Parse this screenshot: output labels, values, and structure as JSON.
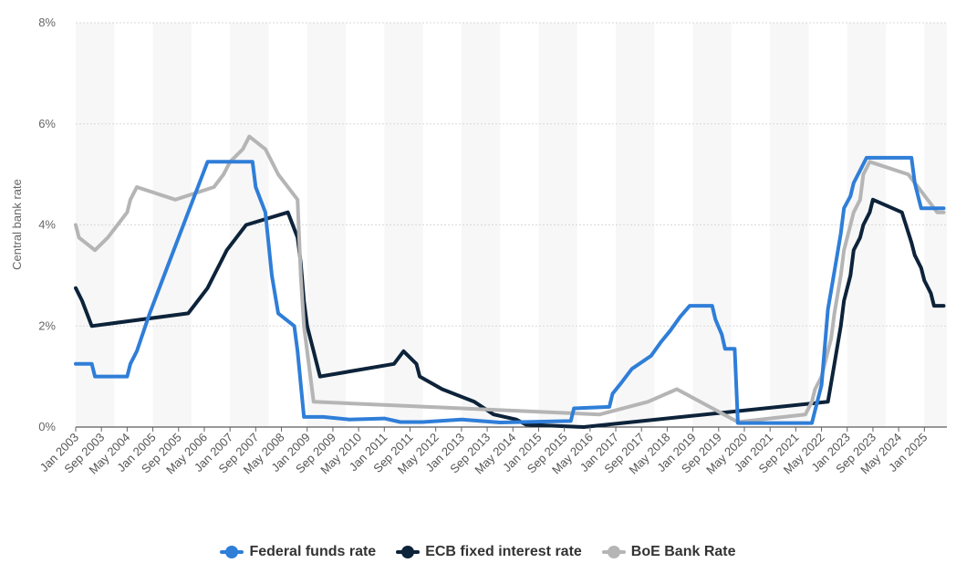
{
  "chart_data": {
    "type": "line",
    "title": "",
    "ylabel": "Central bank rate",
    "xlabel": "",
    "ylim": [
      0,
      8
    ],
    "xlim": [
      "2003-01",
      "2025-08"
    ],
    "yticks": [
      "0%",
      "2%",
      "4%",
      "6%",
      "8%"
    ],
    "ytick_values": [
      0,
      2,
      4,
      6,
      8
    ],
    "xticks": [
      "Jan 2003",
      "Sep 2003",
      "May 2004",
      "Jan 2005",
      "Sep 2005",
      "May 2006",
      "Jan 2007",
      "Sep 2007",
      "May 2008",
      "Jan 2009",
      "Sep 2009",
      "May 2010",
      "Jan 2011",
      "Sep 2011",
      "May 2012",
      "Jan 2013",
      "Sep 2013",
      "May 2014",
      "Jan 2015",
      "Sep 2015",
      "May 2016",
      "Jan 2017",
      "Sep 2017",
      "May 2018",
      "Jan 2019",
      "Sep 2019",
      "May 2020",
      "Jan 2021",
      "Sep 2021",
      "May 2022",
      "Jan 2023",
      "Sep 2023",
      "May 2024",
      "Jan 2025"
    ],
    "xtick_dates": [
      "2003-01",
      "2003-09",
      "2004-05",
      "2005-01",
      "2005-09",
      "2006-05",
      "2007-01",
      "2007-09",
      "2008-05",
      "2009-01",
      "2009-09",
      "2010-05",
      "2011-01",
      "2011-09",
      "2012-05",
      "2013-01",
      "2013-09",
      "2014-05",
      "2015-01",
      "2015-09",
      "2016-05",
      "2017-01",
      "2017-09",
      "2018-05",
      "2019-01",
      "2019-09",
      "2020-05",
      "2021-01",
      "2021-09",
      "2022-05",
      "2023-01",
      "2023-09",
      "2024-05",
      "2025-01"
    ],
    "grid": true,
    "legend_position": "bottom",
    "series": [
      {
        "name": "Federal funds rate",
        "color": "#2f7ed8",
        "points": [
          [
            "2003-01",
            1.25
          ],
          [
            "2003-06",
            1.25
          ],
          [
            "2003-07",
            1.0
          ],
          [
            "2004-05",
            1.0
          ],
          [
            "2004-06",
            1.25
          ],
          [
            "2004-08",
            1.5
          ],
          [
            "2004-12",
            2.25
          ],
          [
            "2005-06",
            3.25
          ],
          [
            "2005-12",
            4.25
          ],
          [
            "2006-06",
            5.25
          ],
          [
            "2007-08",
            5.25
          ],
          [
            "2007-09",
            4.75
          ],
          [
            "2007-12",
            4.25
          ],
          [
            "2008-02",
            3.0
          ],
          [
            "2008-04",
            2.25
          ],
          [
            "2008-09",
            2.0
          ],
          [
            "2008-10",
            1.5
          ],
          [
            "2008-12",
            0.2
          ],
          [
            "2009-06",
            0.2
          ],
          [
            "2010-02",
            0.15
          ],
          [
            "2011-01",
            0.17
          ],
          [
            "2011-06",
            0.1
          ],
          [
            "2012-01",
            0.1
          ],
          [
            "2013-01",
            0.15
          ],
          [
            "2014-01",
            0.09
          ],
          [
            "2015-11",
            0.12
          ],
          [
            "2015-12",
            0.37
          ],
          [
            "2016-11",
            0.4
          ],
          [
            "2016-12",
            0.66
          ],
          [
            "2017-03",
            0.9
          ],
          [
            "2017-06",
            1.15
          ],
          [
            "2017-12",
            1.41
          ],
          [
            "2018-03",
            1.68
          ],
          [
            "2018-06",
            1.91
          ],
          [
            "2018-09",
            2.18
          ],
          [
            "2018-12",
            2.4
          ],
          [
            "2019-07",
            2.4
          ],
          [
            "2019-08",
            2.13
          ],
          [
            "2019-10",
            1.83
          ],
          [
            "2019-11",
            1.55
          ],
          [
            "2020-02",
            1.55
          ],
          [
            "2020-03",
            0.08
          ],
          [
            "2022-02",
            0.08
          ],
          [
            "2022-03",
            0.33
          ],
          [
            "2022-05",
            0.83
          ],
          [
            "2022-06",
            1.58
          ],
          [
            "2022-07",
            2.33
          ],
          [
            "2022-09",
            3.08
          ],
          [
            "2022-11",
            3.83
          ],
          [
            "2022-12",
            4.33
          ],
          [
            "2023-02",
            4.57
          ],
          [
            "2023-03",
            4.83
          ],
          [
            "2023-05",
            5.08
          ],
          [
            "2023-07",
            5.33
          ],
          [
            "2024-09",
            5.33
          ],
          [
            "2024-10",
            4.83
          ],
          [
            "2024-11",
            4.58
          ],
          [
            "2024-12",
            4.33
          ],
          [
            "2025-07",
            4.33
          ]
        ]
      },
      {
        "name": "ECB fixed interest rate",
        "color": "#0d233a",
        "points": [
          [
            "2003-01",
            2.75
          ],
          [
            "2003-03",
            2.5
          ],
          [
            "2003-06",
            2.0
          ],
          [
            "2005-12",
            2.25
          ],
          [
            "2006-03",
            2.5
          ],
          [
            "2006-06",
            2.75
          ],
          [
            "2006-08",
            3.0
          ],
          [
            "2006-10",
            3.25
          ],
          [
            "2006-12",
            3.5
          ],
          [
            "2007-03",
            3.75
          ],
          [
            "2007-06",
            4.0
          ],
          [
            "2008-07",
            4.25
          ],
          [
            "2008-10",
            3.75
          ],
          [
            "2008-11",
            3.25
          ],
          [
            "2008-12",
            2.5
          ],
          [
            "2009-01",
            2.0
          ],
          [
            "2009-03",
            1.5
          ],
          [
            "2009-04",
            1.25
          ],
          [
            "2009-05",
            1.0
          ],
          [
            "2011-04",
            1.25
          ],
          [
            "2011-07",
            1.5
          ],
          [
            "2011-11",
            1.25
          ],
          [
            "2011-12",
            1.0
          ],
          [
            "2012-07",
            0.75
          ],
          [
            "2013-05",
            0.5
          ],
          [
            "2013-11",
            0.25
          ],
          [
            "2014-06",
            0.15
          ],
          [
            "2014-09",
            0.05
          ],
          [
            "2016-03",
            0.0
          ],
          [
            "2022-07",
            0.5
          ],
          [
            "2022-09",
            1.25
          ],
          [
            "2022-11",
            2.0
          ],
          [
            "2022-12",
            2.5
          ],
          [
            "2023-02",
            3.0
          ],
          [
            "2023-03",
            3.5
          ],
          [
            "2023-05",
            3.75
          ],
          [
            "2023-06",
            4.0
          ],
          [
            "2023-08",
            4.25
          ],
          [
            "2023-09",
            4.5
          ],
          [
            "2024-06",
            4.25
          ],
          [
            "2024-09",
            3.65
          ],
          [
            "2024-10",
            3.4
          ],
          [
            "2024-12",
            3.15
          ],
          [
            "2025-01",
            2.9
          ],
          [
            "2025-03",
            2.65
          ],
          [
            "2025-04",
            2.4
          ],
          [
            "2025-07",
            2.4
          ]
        ]
      },
      {
        "name": "BoE Bank Rate",
        "color": "#b5b5b5",
        "points": [
          [
            "2003-01",
            4.0
          ],
          [
            "2003-02",
            3.75
          ],
          [
            "2003-07",
            3.5
          ],
          [
            "2003-11",
            3.75
          ],
          [
            "2004-02",
            4.0
          ],
          [
            "2004-05",
            4.25
          ],
          [
            "2004-06",
            4.5
          ],
          [
            "2004-08",
            4.75
          ],
          [
            "2005-08",
            4.5
          ],
          [
            "2006-08",
            4.75
          ],
          [
            "2006-11",
            5.0
          ],
          [
            "2007-01",
            5.25
          ],
          [
            "2007-05",
            5.5
          ],
          [
            "2007-07",
            5.75
          ],
          [
            "2007-12",
            5.5
          ],
          [
            "2008-02",
            5.25
          ],
          [
            "2008-04",
            5.0
          ],
          [
            "2008-10",
            4.5
          ],
          [
            "2008-11",
            3.0
          ],
          [
            "2008-12",
            2.0
          ],
          [
            "2009-01",
            1.5
          ],
          [
            "2009-02",
            1.0
          ],
          [
            "2009-03",
            0.5
          ],
          [
            "2016-08",
            0.25
          ],
          [
            "2017-11",
            0.5
          ],
          [
            "2018-08",
            0.75
          ],
          [
            "2020-03",
            0.1
          ],
          [
            "2021-12",
            0.25
          ],
          [
            "2022-02",
            0.5
          ],
          [
            "2022-03",
            0.75
          ],
          [
            "2022-05",
            1.0
          ],
          [
            "2022-06",
            1.25
          ],
          [
            "2022-08",
            1.75
          ],
          [
            "2022-09",
            2.25
          ],
          [
            "2022-11",
            3.0
          ],
          [
            "2022-12",
            3.5
          ],
          [
            "2023-02",
            4.0
          ],
          [
            "2023-03",
            4.25
          ],
          [
            "2023-05",
            4.5
          ],
          [
            "2023-06",
            5.0
          ],
          [
            "2023-08",
            5.25
          ],
          [
            "2024-08",
            5.0
          ],
          [
            "2024-11",
            4.75
          ],
          [
            "2025-02",
            4.5
          ],
          [
            "2025-05",
            4.25
          ],
          [
            "2025-07",
            4.25
          ]
        ]
      }
    ]
  }
}
